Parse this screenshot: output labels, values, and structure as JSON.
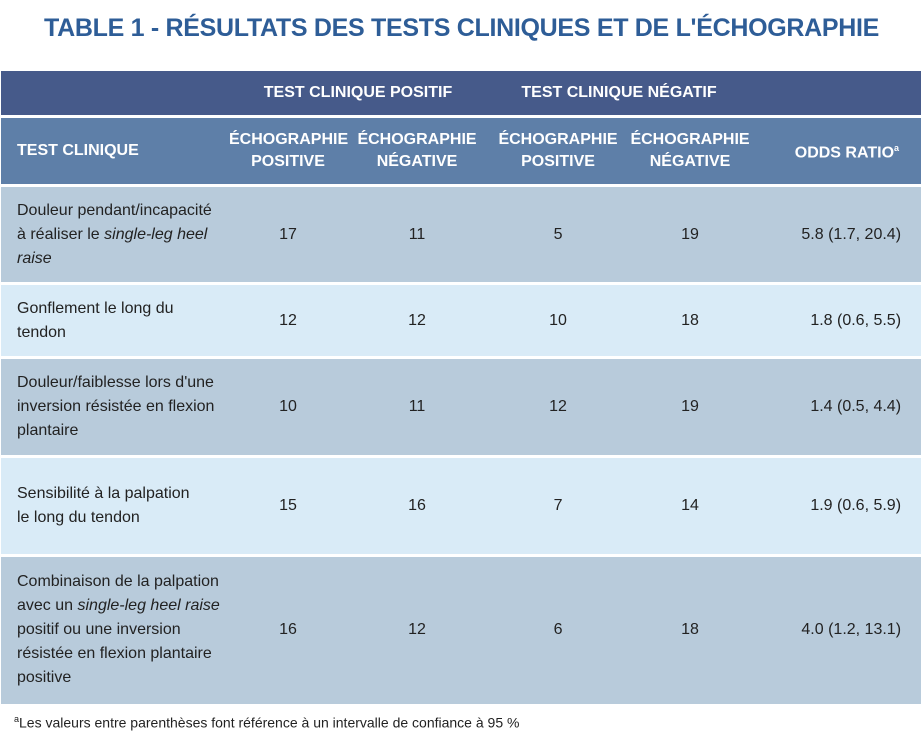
{
  "title": "TABLE 1 - RÉSULTATS DES TESTS CLINIQUES ET DE L'ÉCHOGRAPHIE",
  "groups": {
    "positive": "TEST CLINIQUE POSITIF",
    "negative": "TEST CLINIQUE NÉGATIF"
  },
  "columns": {
    "test": "TEST CLINIQUE",
    "pos_pos_line1": "ÉCHOGRAPHIE",
    "pos_pos_line2": "POSITIVE",
    "pos_neg_line1": "ÉCHOGRAPHIE",
    "pos_neg_line2": "NÉGATIVE",
    "neg_pos_line1": "ÉCHOGRAPHIE",
    "neg_pos_line2": "POSITIVE",
    "neg_neg_line1": "ÉCHOGRAPHIE",
    "neg_neg_line2": "NÉGATIVE",
    "odds_ratio": "ODDS RATIO",
    "odds_ratio_sup": "a"
  },
  "rows": [
    {
      "label_parts": [
        "Douleur pendant/incapacité",
        "à réaliser le ",
        "single-leg heel raise"
      ],
      "values": [
        "17",
        "11",
        "5",
        "19"
      ],
      "odds_ratio": "5.8 (1.7, 20.4)"
    },
    {
      "label": "Gonflement le long du tendon",
      "values": [
        "12",
        "12",
        "10",
        "18"
      ],
      "odds_ratio": "1.8 (0.6, 5.5)"
    },
    {
      "label": "Douleur/faiblesse lors d'une inversion résistée en flexion plantaire",
      "values": [
        "10",
        "11",
        "12",
        "19"
      ],
      "odds_ratio": "1.4 (0.5, 4.4)"
    },
    {
      "label_line1": "Sensibilité à la palpation",
      "label_line2": "le long du tendon",
      "values": [
        "15",
        "16",
        "7",
        "14"
      ],
      "odds_ratio": "1.9 (0.6, 5.9)"
    },
    {
      "label_parts": [
        "Combinaison de la palpation",
        "avec un ",
        "single-leg heel raise",
        "positif ou une inversion résistée en flexion plantaire positive"
      ],
      "values": [
        "16",
        "12",
        "6",
        "18"
      ],
      "odds_ratio": "4.0 (1.2, 13.1)"
    }
  ],
  "footnote": {
    "marker": "a",
    "text": "Les valeurs entre parenthèses font référence à un intervalle de confiance à 95 %"
  }
}
